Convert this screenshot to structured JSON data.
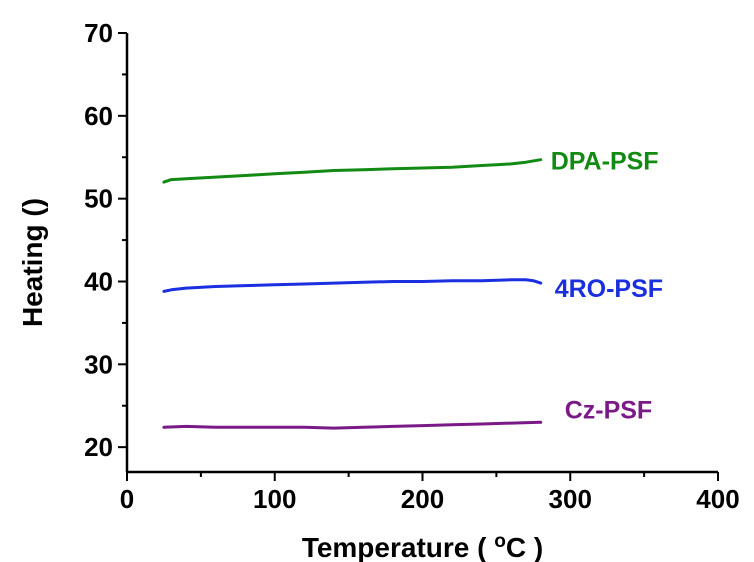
{
  "chart_data": {
    "type": "line",
    "xlabel": "Temperature ( °C )",
    "xlabel_parts": {
      "prefix": "Temperature ( ",
      "sup": "o",
      "suffix": "C )"
    },
    "ylabel": "Heating ()",
    "xlim": [
      0,
      400
    ],
    "ylim": [
      17,
      70
    ],
    "xticks": [
      0,
      100,
      200,
      300,
      400
    ],
    "yticks": [
      20,
      30,
      40,
      50,
      60,
      70
    ],
    "grid": false,
    "legend": "inline labels at right end of each line",
    "series": [
      {
        "name": "DPA-PSF",
        "color": "#138a13",
        "x": [
          25,
          30,
          40,
          60,
          80,
          100,
          120,
          140,
          160,
          180,
          200,
          220,
          240,
          250,
          260,
          270,
          280
        ],
        "y": [
          52.0,
          52.3,
          52.4,
          52.6,
          52.8,
          53.0,
          53.2,
          53.4,
          53.5,
          53.6,
          53.7,
          53.8,
          54.0,
          54.1,
          54.2,
          54.4,
          54.7
        ]
      },
      {
        "name": "4RO-PSF",
        "color": "#1a2fe0",
        "x": [
          25,
          30,
          40,
          60,
          80,
          100,
          120,
          140,
          160,
          180,
          200,
          220,
          240,
          260,
          270,
          275,
          280
        ],
        "y": [
          38.8,
          39.0,
          39.2,
          39.4,
          39.5,
          39.6,
          39.7,
          39.8,
          39.9,
          40.0,
          40.0,
          40.1,
          40.1,
          40.2,
          40.2,
          40.1,
          39.8
        ]
      },
      {
        "name": "Cz-PSF",
        "color": "#7a1a86",
        "x": [
          25,
          40,
          60,
          80,
          100,
          120,
          140,
          160,
          180,
          200,
          220,
          240,
          260,
          280
        ],
        "y": [
          22.4,
          22.5,
          22.4,
          22.4,
          22.4,
          22.4,
          22.3,
          22.4,
          22.5,
          22.6,
          22.7,
          22.8,
          22.9,
          23.0
        ]
      }
    ]
  }
}
